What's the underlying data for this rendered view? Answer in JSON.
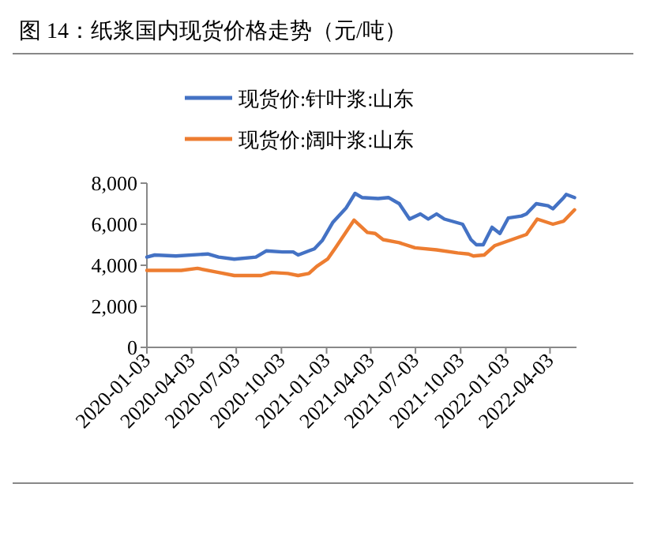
{
  "chart_data": {
    "type": "line",
    "title": "图 14：纸浆国内现货价格走势（元/吨）",
    "legend": "top",
    "grid": false,
    "marker": "none",
    "line_style": "solid",
    "xlim": [
      "2020-01-03",
      "2022-05-27"
    ],
    "xticks": [
      "2020-01-03",
      "2020-04-03",
      "2020-07-03",
      "2020-10-03",
      "2021-01-03",
      "2021-04-03",
      "2021-07-03",
      "2021-10-03",
      "2022-01-03",
      "2022-04-03"
    ],
    "ylim": [
      0,
      8000
    ],
    "yticks": [
      0,
      {
        "value": 2000,
        "label": "2,000"
      },
      {
        "value": 4000,
        "label": "4,000"
      },
      {
        "value": 6000,
        "label": "6,000"
      },
      {
        "value": 8000,
        "label": "8,000"
      }
    ],
    "series": [
      {
        "name": "现货价:针叶浆:山东",
        "color": "#4472c4",
        "x": [
          "2020-01-03",
          "2020-01-19",
          "2020-03-02",
          "2020-05-06",
          "2020-05-28",
          "2020-06-29",
          "2020-08-12",
          "2020-09-02",
          "2020-10-05",
          "2020-10-27",
          "2020-11-06",
          "2020-11-28",
          "2020-12-09",
          "2020-12-25",
          "2021-01-16",
          "2021-02-12",
          "2021-03-02",
          "2021-03-16",
          "2021-04-18",
          "2021-05-09",
          "2021-05-31",
          "2021-06-21",
          "2021-07-13",
          "2021-07-29",
          "2021-08-15",
          "2021-08-31",
          "2021-10-07",
          "2021-10-24",
          "2021-11-04",
          "2021-11-18",
          "2021-12-06",
          "2021-12-22",
          "2022-01-08",
          "2022-02-04",
          "2022-02-14",
          "2022-03-06",
          "2022-03-30",
          "2022-04-09",
          "2022-05-01",
          "2022-05-06",
          "2022-05-23"
        ],
        "values": [
          4400,
          4500,
          4450,
          4550,
          4400,
          4300,
          4400,
          4700,
          4650,
          4650,
          4500,
          4700,
          4800,
          5200,
          6100,
          6800,
          7500,
          7300,
          7250,
          7300,
          7000,
          6250,
          6500,
          6250,
          6500,
          6250,
          6000,
          5250,
          5000,
          5000,
          5850,
          5550,
          6300,
          6400,
          6500,
          7000,
          6900,
          6750,
          7300,
          7450,
          7300
        ]
      },
      {
        "name": "现货价:阔叶浆:山东",
        "color": "#ed7d31",
        "x": [
          "2020-01-03",
          "2020-03-13",
          "2020-04-15",
          "2020-05-28",
          "2020-06-29",
          "2020-08-23",
          "2020-09-13",
          "2020-10-16",
          "2020-11-06",
          "2020-11-28",
          "2020-12-14",
          "2021-01-05",
          "2021-01-21",
          "2021-02-28",
          "2021-03-27",
          "2021-04-12",
          "2021-04-28",
          "2021-05-31",
          "2021-07-02",
          "2021-08-15",
          "2021-09-27",
          "2021-10-19",
          "2021-10-29",
          "2021-11-20",
          "2021-12-11",
          "2022-02-14",
          "2022-03-08",
          "2022-04-09",
          "2022-05-01",
          "2022-05-23"
        ],
        "values": [
          3750,
          3750,
          3850,
          3650,
          3500,
          3500,
          3650,
          3600,
          3500,
          3600,
          3950,
          4300,
          4850,
          6200,
          5600,
          5550,
          5250,
          5100,
          4850,
          4750,
          4600,
          4550,
          4450,
          4500,
          4950,
          5500,
          6250,
          6000,
          6150,
          6700
        ]
      }
    ]
  }
}
